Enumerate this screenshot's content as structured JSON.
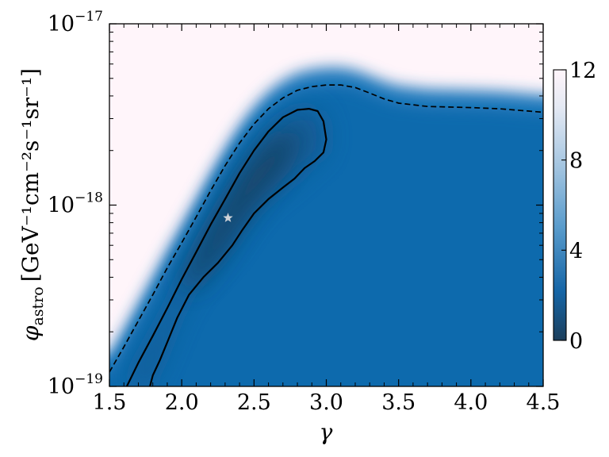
{
  "chart_data": {
    "type": "heatmap",
    "title": "",
    "xlabel": "γ",
    "ylabel": {
      "symbol": "φ",
      "subscript": "astro",
      "units": "[GeV⁻¹cm⁻²s⁻¹sr⁻¹]"
    },
    "x_range": [
      1.5,
      4.5
    ],
    "y_range": [
      1e-19,
      1e-17
    ],
    "y_scale": "log",
    "x_ticks": [
      "1.5",
      "2.0",
      "2.5",
      "3.0",
      "3.5",
      "4.0",
      "4.5"
    ],
    "y_ticks": [
      {
        "value": 1e-19,
        "base": "10",
        "exp": "−19"
      },
      {
        "value": 1e-18,
        "base": "10",
        "exp": "−18"
      },
      {
        "value": 1e-17,
        "base": "10",
        "exp": "−17"
      }
    ],
    "colorbar": {
      "range": [
        0,
        12
      ],
      "ticks": [
        "0",
        "4",
        "8",
        "12"
      ],
      "colormap": [
        "#1c3f5c",
        "#1565a6",
        "#5a9ccc",
        "#a9c8e2",
        "#e4e9f3",
        "#fff5fa"
      ]
    },
    "best_fit": {
      "gamma": 2.32,
      "phi": 8.5e-19,
      "marker": "star",
      "color": "#cfd3d8"
    },
    "contours": [
      {
        "style": "solid",
        "points": [
          [
            1.62,
            1e-19
          ],
          [
            1.7,
            1.35e-19
          ],
          [
            1.8,
            1.9e-19
          ],
          [
            1.9,
            2.7e-19
          ],
          [
            2.0,
            3.9e-19
          ],
          [
            2.1,
            5.5e-19
          ],
          [
            2.2,
            7.8e-19
          ],
          [
            2.3,
            1.08e-18
          ],
          [
            2.4,
            1.5e-18
          ],
          [
            2.5,
            2e-18
          ],
          [
            2.6,
            2.55e-18
          ],
          [
            2.7,
            3.05e-18
          ],
          [
            2.8,
            3.35e-18
          ],
          [
            2.88,
            3.4e-18
          ],
          [
            2.94,
            3.3e-18
          ],
          [
            2.98,
            2.9e-18
          ],
          [
            3.0,
            2.3e-18
          ],
          [
            2.98,
            1.95e-18
          ],
          [
            2.92,
            1.75e-18
          ],
          [
            2.85,
            1.6e-18
          ],
          [
            2.78,
            1.4e-18
          ],
          [
            2.7,
            1.25e-18
          ],
          [
            2.6,
            1.08e-18
          ],
          [
            2.5,
            9e-19
          ],
          [
            2.42,
            7.3e-19
          ],
          [
            2.35,
            6e-19
          ],
          [
            2.25,
            4.8e-19
          ],
          [
            2.15,
            4e-19
          ],
          [
            2.05,
            3.2e-19
          ],
          [
            1.97,
            2.4e-19
          ],
          [
            1.9,
            1.75e-19
          ],
          [
            1.85,
            1.4e-19
          ],
          [
            1.8,
            1.15e-19
          ],
          [
            1.78,
            1e-19
          ]
        ]
      },
      {
        "style": "dashed",
        "points": [
          [
            1.5,
            1.2e-19
          ],
          [
            1.6,
            1.65e-19
          ],
          [
            1.7,
            2.3e-19
          ],
          [
            1.8,
            3.2e-19
          ],
          [
            1.9,
            4.5e-19
          ],
          [
            2.0,
            6.2e-19
          ],
          [
            2.1,
            8.6e-19
          ],
          [
            2.2,
            1.2e-18
          ],
          [
            2.3,
            1.65e-18
          ],
          [
            2.4,
            2.2e-18
          ],
          [
            2.5,
            2.8e-18
          ],
          [
            2.6,
            3.4e-18
          ],
          [
            2.7,
            3.9e-18
          ],
          [
            2.8,
            4.3e-18
          ],
          [
            2.9,
            4.5e-18
          ],
          [
            3.0,
            4.6e-18
          ],
          [
            3.1,
            4.6e-18
          ],
          [
            3.2,
            4.45e-18
          ],
          [
            3.3,
            4.15e-18
          ],
          [
            3.4,
            3.85e-18
          ],
          [
            3.5,
            3.65e-18
          ],
          [
            3.7,
            3.5e-18
          ],
          [
            4.0,
            3.45e-18
          ],
          [
            4.2,
            3.4e-18
          ],
          [
            4.4,
            3.3e-18
          ],
          [
            4.5,
            3.25e-18
          ]
        ]
      }
    ]
  }
}
